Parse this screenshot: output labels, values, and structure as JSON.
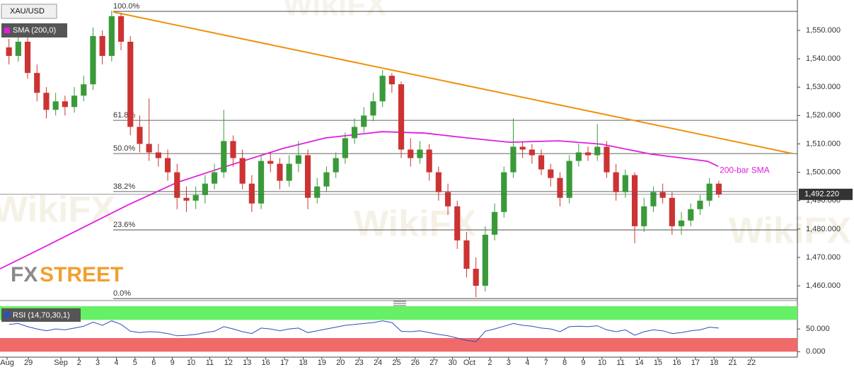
{
  "chart_data": {
    "type": "candlestick",
    "symbol": "XAU/USD",
    "indicator_label": "SMA (200,0)",
    "up_color": "#3a9a3a",
    "down_color": "#cc3333",
    "x": [
      0.25,
      0.75,
      1.25,
      1.75,
      2.25,
      2.75,
      3.25,
      3.75,
      4.25,
      4.75,
      5.25,
      5.75,
      6.25,
      6.75,
      7.25,
      7.75,
      8.25,
      8.75,
      9.25,
      9.75,
      10.25,
      10.75,
      11.25,
      11.75,
      12.25,
      12.75,
      13.25,
      13.75,
      14.25,
      14.75,
      15.25,
      15.75,
      16.25,
      16.75,
      17.25,
      17.75,
      18.25,
      18.75,
      19.25,
      19.75,
      20.25,
      20.75,
      21.25,
      21.75,
      22.25,
      22.75,
      23.25,
      23.75,
      24.25,
      24.75,
      25.25,
      25.75,
      26.25,
      26.75,
      27.25,
      27.75,
      28.25,
      28.75,
      29.25,
      29.75,
      30.25,
      30.75,
      31.25,
      31.75,
      32.25,
      32.75,
      33.25,
      33.75,
      34.25,
      34.75,
      35.25,
      35.75,
      36.25,
      36.75,
      37.25,
      37.75,
      38.25
    ],
    "open": [
      1544,
      1541,
      1546,
      1535,
      1528,
      1522,
      1525,
      1523,
      1527,
      1531,
      1548,
      1541,
      1555,
      1546,
      1516,
      1510,
      1507,
      1505,
      1500,
      1491,
      1490,
      1492,
      1496,
      1500,
      1511,
      1505,
      1496,
      1489,
      1504,
      1503,
      1497,
      1503,
      1506,
      1491,
      1495,
      1500,
      1505,
      1512,
      1516,
      1520,
      1525,
      1534,
      1531,
      1508,
      1505,
      1508,
      1500,
      1493,
      1488,
      1476,
      1466,
      1460,
      1478,
      1486,
      1500,
      1509,
      1508,
      1506,
      1501,
      1498,
      1491,
      1504,
      1507,
      1506,
      1509,
      1500,
      1493,
      1499,
      1481,
      1488,
      1493,
      1491,
      1481,
      1483,
      1487,
      1490,
      1496
    ],
    "high": [
      1547,
      1549,
      1548,
      1538,
      1530,
      1528,
      1527,
      1530,
      1534,
      1551,
      1550,
      1557,
      1556,
      1548,
      1520,
      1526,
      1510,
      1508,
      1503,
      1495,
      1495,
      1499,
      1503,
      1522,
      1513,
      1508,
      1499,
      1506,
      1507,
      1505,
      1506,
      1511,
      1508,
      1498,
      1502,
      1507,
      1514,
      1519,
      1523,
      1528,
      1536,
      1535,
      1532,
      1512,
      1511,
      1510,
      1502,
      1496,
      1490,
      1479,
      1470,
      1481,
      1489,
      1502,
      1519,
      1511,
      1510,
      1508,
      1503,
      1500,
      1506,
      1510,
      1509,
      1517,
      1511,
      1503,
      1501,
      1500,
      1491,
      1495,
      1496,
      1493,
      1486,
      1489,
      1492,
      1498,
      1497
    ],
    "low": [
      1538,
      1539,
      1533,
      1525,
      1519,
      1520,
      1520,
      1521,
      1525,
      1529,
      1538,
      1539,
      1543,
      1513,
      1507,
      1504,
      1502,
      1497,
      1487,
      1486,
      1487,
      1489,
      1494,
      1498,
      1502,
      1494,
      1486,
      1487,
      1500,
      1494,
      1495,
      1500,
      1487,
      1489,
      1493,
      1498,
      1503,
      1510,
      1514,
      1518,
      1523,
      1528,
      1505,
      1502,
      1503,
      1497,
      1490,
      1485,
      1473,
      1463,
      1456,
      1458,
      1476,
      1484,
      1498,
      1505,
      1503,
      1499,
      1495,
      1488,
      1489,
      1502,
      1504,
      1504,
      1498,
      1490,
      1491,
      1475,
      1479,
      1486,
      1489,
      1478,
      1478,
      1481,
      1485,
      1488,
      1491
    ],
    "close": [
      1541,
      1546,
      1535,
      1528,
      1522,
      1525,
      1523,
      1527,
      1531,
      1548,
      1541,
      1555,
      1546,
      1516,
      1510,
      1507,
      1505,
      1500,
      1491,
      1490,
      1492,
      1496,
      1500,
      1511,
      1505,
      1496,
      1489,
      1504,
      1503,
      1497,
      1503,
      1506,
      1491,
      1495,
      1500,
      1505,
      1512,
      1516,
      1520,
      1525,
      1534,
      1531,
      1508,
      1505,
      1508,
      1500,
      1493,
      1488,
      1476,
      1466,
      1460,
      1478,
      1486,
      1500,
      1509,
      1508,
      1506,
      1501,
      1498,
      1491,
      1504,
      1507,
      1506,
      1509,
      1500,
      1493,
      1499,
      1481,
      1488,
      1493,
      1491,
      1481,
      1483,
      1487,
      1490,
      1496,
      1492.22
    ],
    "xlim": [
      -0.23,
      42.46
    ],
    "xticks": [
      {
        "value": 0.15,
        "label": "Aug"
      },
      {
        "value": 1.29,
        "label": "29"
      },
      {
        "value": 3.03,
        "label": "Sep"
      },
      {
        "value": 4,
        "label": "2"
      },
      {
        "value": 5,
        "label": "3"
      },
      {
        "value": 6,
        "label": "4"
      },
      {
        "value": 7,
        "label": "5"
      },
      {
        "value": 8,
        "label": "6"
      },
      {
        "value": 9,
        "label": "9"
      },
      {
        "value": 10,
        "label": "10"
      },
      {
        "value": 11,
        "label": "11"
      },
      {
        "value": 12,
        "label": "12"
      },
      {
        "value": 13,
        "label": "13"
      },
      {
        "value": 14,
        "label": "16"
      },
      {
        "value": 15,
        "label": "17"
      },
      {
        "value": 16,
        "label": "18"
      },
      {
        "value": 17,
        "label": "19"
      },
      {
        "value": 18,
        "label": "20"
      },
      {
        "value": 19,
        "label": "23"
      },
      {
        "value": 20,
        "label": "24"
      },
      {
        "value": 21,
        "label": "25"
      },
      {
        "value": 22,
        "label": "26"
      },
      {
        "value": 23,
        "label": "27"
      },
      {
        "value": 24,
        "label": "30"
      },
      {
        "value": 24.9,
        "label": "Oct"
      },
      {
        "value": 26,
        "label": "2"
      },
      {
        "value": 27,
        "label": "3"
      },
      {
        "value": 28,
        "label": "4"
      },
      {
        "value": 29,
        "label": "7"
      },
      {
        "value": 30,
        "label": "8"
      },
      {
        "value": 31,
        "label": "9"
      },
      {
        "value": 32,
        "label": "10"
      },
      {
        "value": 33,
        "label": "11"
      },
      {
        "value": 34,
        "label": "14"
      },
      {
        "value": 35,
        "label": "15"
      },
      {
        "value": 36,
        "label": "16"
      },
      {
        "value": 37,
        "label": "17"
      },
      {
        "value": 38,
        "label": "18"
      },
      {
        "value": 39,
        "label": "21"
      },
      {
        "value": 40,
        "label": "22"
      }
    ],
    "ylim": [
      1454.8,
      1560.7
    ],
    "yticks": [
      {
        "value": 1460,
        "label": "1,460.000"
      },
      {
        "value": 1470,
        "label": "1,470.000"
      },
      {
        "value": 1480,
        "label": "1,480.000"
      },
      {
        "value": 1490,
        "label": "1,490.000"
      },
      {
        "value": 1500,
        "label": "1,500.000"
      },
      {
        "value": 1510,
        "label": "1,510.000"
      },
      {
        "value": 1520,
        "label": "1,520.000"
      },
      {
        "value": 1530,
        "label": "1,530.000"
      },
      {
        "value": 1540,
        "label": "1,540.000"
      },
      {
        "value": 1550,
        "label": "1,550.000"
      }
    ],
    "last_price": {
      "value": 1492.22,
      "label": "1,492.220"
    },
    "sma": {
      "label": "200-bar SMA",
      "color": "#e01ee0",
      "x": [
        -0.23,
        2.05,
        4.32,
        6.59,
        9.24,
        11.89,
        14.92,
        17.2,
        20.23,
        22.5,
        24.77,
        27.05,
        29.7,
        31.97,
        34.62,
        37.65,
        38.22
      ],
      "values": [
        1466.0,
        1473.4,
        1480.9,
        1488.4,
        1496.4,
        1502.1,
        1508.4,
        1512.1,
        1514.3,
        1513.8,
        1512.1,
        1510.6,
        1511.1,
        1509.9,
        1506.4,
        1503.9,
        1502.1
      ]
    },
    "trendline": {
      "color": "#f0900a",
      "x": [
        5.83,
        42.2
      ],
      "values": [
        1556.5,
        1506.6
      ]
    },
    "fib_start": 5.83,
    "fib_levels": [
      {
        "value": 1556.7,
        "label": "100.0%"
      },
      {
        "value": 1518.3,
        "label": "61.8%"
      },
      {
        "value": 1506.6,
        "label": "50.0%"
      },
      {
        "value": 1493.2,
        "label": "38.2%"
      },
      {
        "value": 1479.7,
        "label": "23.6%"
      },
      {
        "value": 1455.5,
        "label": "0.0%"
      }
    ],
    "rsi": {
      "label": "RSI (14,70,30,1)",
      "color": "#2a4fc0",
      "ylim": [
        -12,
        100
      ],
      "yticks": [
        {
          "value": 50,
          "label": "50.000"
        },
        {
          "value": 0,
          "label": "0.000"
        }
      ],
      "bands": [
        {
          "from": 70,
          "to": 100,
          "color": "#66f066"
        },
        {
          "from": 0,
          "to": 30,
          "color": "#f06a6a"
        }
      ],
      "values": [
        60,
        62,
        55,
        50,
        46,
        50,
        48,
        52,
        56,
        65,
        58,
        68,
        60,
        45,
        42,
        44,
        43,
        40,
        35,
        36,
        38,
        42,
        45,
        55,
        50,
        44,
        40,
        52,
        50,
        46,
        50,
        52,
        42,
        46,
        50,
        54,
        58,
        60,
        62,
        64,
        68,
        64,
        45,
        44,
        46,
        42,
        38,
        35,
        30,
        25,
        22,
        45,
        50,
        56,
        62,
        58,
        56,
        52,
        50,
        44,
        55,
        56,
        55,
        57,
        48,
        44,
        48,
        36,
        44,
        48,
        46,
        40,
        42,
        46,
        48,
        54,
        52
      ]
    },
    "logo": {
      "part1": "FX",
      "part2": "STREET"
    },
    "watermark": "WikiFX"
  }
}
